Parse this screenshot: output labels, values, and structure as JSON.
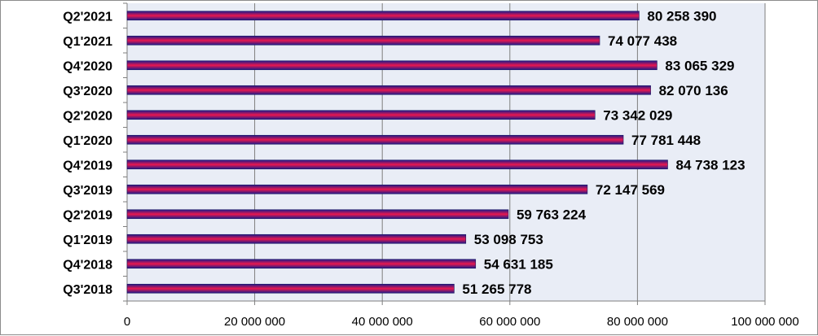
{
  "chart_data": {
    "type": "bar",
    "orientation": "horizontal",
    "categories": [
      "Q2'2021",
      "Q1'2021",
      "Q4'2020",
      "Q3'2020",
      "Q2'2020",
      "Q1'2020",
      "Q4'2019",
      "Q3'2019",
      "Q2'2019",
      "Q1'2019",
      "Q4'2018",
      "Q3'2018"
    ],
    "values": [
      80258390,
      74077438,
      83065329,
      82070136,
      73342029,
      77781448,
      84738123,
      72147569,
      59763224,
      53098753,
      54631185,
      51265778
    ],
    "value_labels": [
      "80 258 390",
      "74 077 438",
      "83 065 329",
      "82 070 136",
      "73 342 029",
      "77 781 448",
      "84 738 123",
      "72 147 569",
      "59 763 224",
      "53 098 753",
      "54 631 185",
      "51 265 778"
    ],
    "x_ticks": [
      0,
      20000000,
      40000000,
      60000000,
      80000000,
      100000000
    ],
    "x_tick_labels": [
      "0",
      "20 000 000",
      "40 000 000",
      "60 000 000",
      "80 000 000",
      "100 000 000"
    ],
    "xlim": [
      0,
      100000000
    ],
    "grid": "vertical",
    "legend": "none",
    "title": "",
    "xlabel": "",
    "ylabel": "",
    "colors": {
      "bar_gradient": [
        "#1e1a8a",
        "#e8174f",
        "#1e1a8a"
      ],
      "plot_background": "#e9edf6",
      "gridline": "#7f7f7f",
      "frame_border": "#8c8c8c"
    }
  }
}
